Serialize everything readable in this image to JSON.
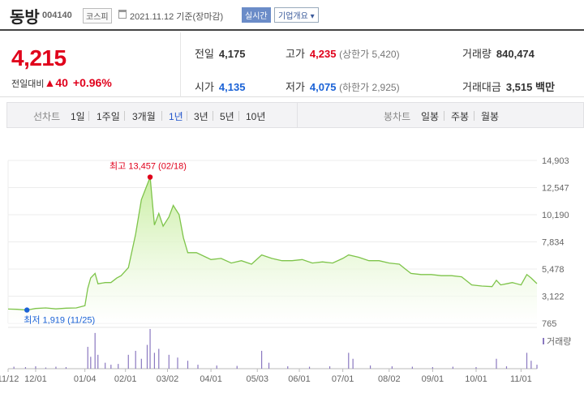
{
  "header": {
    "name": "동방",
    "code": "004140",
    "market": "코스피",
    "date": "2021.11.12 기준(장마감)",
    "realtime_label": "실시간",
    "company_info_label": "기업개요",
    "company_info_arrow": "▾"
  },
  "quote": {
    "price": "4,215",
    "change_label": "전일대비",
    "change_arrow": "▲",
    "change_amount": "40",
    "change_pct": "+0.96%",
    "prev_close_label": "전일",
    "prev_close": "4,175",
    "high_label": "고가",
    "high": "4,235",
    "upper_limit": "(상한가 5,420)",
    "volume_label": "거래량",
    "volume": "840,474",
    "open_label": "시가",
    "open": "4,135",
    "low_label": "저가",
    "low": "4,075",
    "lower_limit": "(하한가 2,925)",
    "value_label": "거래대금",
    "value": "3,515",
    "value_unit": "백만"
  },
  "tabs": {
    "line_label": "선차트",
    "periods": [
      "1일",
      "1주일",
      "3개월",
      "1년",
      "3년",
      "5년",
      "10년"
    ],
    "active_period": "1년",
    "candle_label": "봉차트",
    "candle_periods": [
      "일봉",
      "주봉",
      "월봉"
    ]
  },
  "colors": {
    "up": "#e0001b",
    "down": "#1a62d6",
    "line": "#7ec44a",
    "area_top": "#c9eea2",
    "area_bottom": "#ffffff",
    "volume": "#8a78c0"
  },
  "chart_data": {
    "type": "area",
    "y_ticks": [
      "14,903",
      "12,547",
      "10,190",
      "7,834",
      "5,478",
      "3,122",
      "765"
    ],
    "ylim": [
      765,
      14903
    ],
    "x_ticks": [
      "11/12",
      "12/01",
      "01/04",
      "02/01",
      "03/02",
      "04/01",
      "05/03",
      "06/01",
      "07/01",
      "08/02",
      "09/01",
      "10/01",
      "11/01"
    ],
    "x_range": [
      "2020-11-12",
      "2021-11-12"
    ],
    "series": [
      {
        "points": [
          [
            "2020-11-12",
            2000
          ],
          [
            "2020-11-18",
            1980
          ],
          [
            "2020-11-25",
            1919
          ],
          [
            "2020-12-01",
            2050
          ],
          [
            "2020-12-08",
            2100
          ],
          [
            "2020-12-15",
            2020
          ],
          [
            "2020-12-22",
            2080
          ],
          [
            "2020-12-29",
            2100
          ],
          [
            "2021-01-04",
            2300
          ],
          [
            "2021-01-06",
            3800
          ],
          [
            "2021-01-08",
            4700
          ],
          [
            "2021-01-11",
            5100
          ],
          [
            "2021-01-13",
            4200
          ],
          [
            "2021-01-18",
            4300
          ],
          [
            "2021-01-22",
            4300
          ],
          [
            "2021-01-26",
            4700
          ],
          [
            "2021-01-29",
            4900
          ],
          [
            "2021-02-03",
            5600
          ],
          [
            "2021-02-08",
            8500
          ],
          [
            "2021-02-12",
            11500
          ],
          [
            "2021-02-18",
            13457
          ],
          [
            "2021-02-21",
            9300
          ],
          [
            "2021-02-24",
            10300
          ],
          [
            "2021-02-27",
            9200
          ],
          [
            "2021-03-03",
            10000
          ],
          [
            "2021-03-06",
            11000
          ],
          [
            "2021-03-10",
            10200
          ],
          [
            "2021-03-13",
            8200
          ],
          [
            "2021-03-16",
            6900
          ],
          [
            "2021-03-22",
            6900
          ],
          [
            "2021-04-01",
            6300
          ],
          [
            "2021-04-08",
            6400
          ],
          [
            "2021-04-15",
            6000
          ],
          [
            "2021-04-22",
            6200
          ],
          [
            "2021-04-29",
            5900
          ],
          [
            "2021-05-06",
            6700
          ],
          [
            "2021-05-13",
            6400
          ],
          [
            "2021-05-20",
            6200
          ],
          [
            "2021-05-27",
            6200
          ],
          [
            "2021-06-03",
            6300
          ],
          [
            "2021-06-10",
            6000
          ],
          [
            "2021-06-17",
            6100
          ],
          [
            "2021-06-24",
            6000
          ],
          [
            "2021-07-01",
            6400
          ],
          [
            "2021-07-05",
            6700
          ],
          [
            "2021-07-12",
            6500
          ],
          [
            "2021-07-19",
            6200
          ],
          [
            "2021-07-26",
            6200
          ],
          [
            "2021-08-02",
            6000
          ],
          [
            "2021-08-09",
            5900
          ],
          [
            "2021-08-13",
            5500
          ],
          [
            "2021-08-17",
            5100
          ],
          [
            "2021-08-24",
            5000
          ],
          [
            "2021-08-31",
            5000
          ],
          [
            "2021-09-07",
            4900
          ],
          [
            "2021-09-14",
            4900
          ],
          [
            "2021-09-21",
            4800
          ],
          [
            "2021-09-28",
            4100
          ],
          [
            "2021-10-05",
            4000
          ],
          [
            "2021-10-12",
            3950
          ],
          [
            "2021-10-15",
            4500
          ],
          [
            "2021-10-18",
            4100
          ],
          [
            "2021-10-22",
            4200
          ],
          [
            "2021-10-26",
            4300
          ],
          [
            "2021-11-01",
            4100
          ],
          [
            "2021-11-05",
            5000
          ],
          [
            "2021-11-08",
            4700
          ],
          [
            "2021-11-12",
            4215
          ]
        ]
      }
    ],
    "annotations": [
      {
        "text": "최고 13,457 (02/18)",
        "date": "2021-02-18",
        "value": 13457,
        "color": "#e0001b"
      },
      {
        "text": "최저 1,919 (11/25)",
        "date": "2020-11-25",
        "value": 1919,
        "color": "#1a62d6"
      }
    ],
    "volume_label": "거래량",
    "volume": [
      [
        "2020-11-16",
        0.05
      ],
      [
        "2020-11-24",
        0.04
      ],
      [
        "2020-12-01",
        0.06
      ],
      [
        "2020-12-08",
        0.03
      ],
      [
        "2020-12-15",
        0.05
      ],
      [
        "2020-12-22",
        0.04
      ],
      [
        "2021-01-06",
        0.55
      ],
      [
        "2021-01-08",
        0.3
      ],
      [
        "2021-01-11",
        0.9
      ],
      [
        "2021-01-13",
        0.35
      ],
      [
        "2021-01-18",
        0.15
      ],
      [
        "2021-01-22",
        0.1
      ],
      [
        "2021-01-27",
        0.12
      ],
      [
        "2021-02-03",
        0.35
      ],
      [
        "2021-02-08",
        0.45
      ],
      [
        "2021-02-12",
        0.25
      ],
      [
        "2021-02-16",
        0.6
      ],
      [
        "2021-02-18",
        1.0
      ],
      [
        "2021-02-21",
        0.4
      ],
      [
        "2021-02-24",
        0.5
      ],
      [
        "2021-03-03",
        0.35
      ],
      [
        "2021-03-09",
        0.28
      ],
      [
        "2021-03-16",
        0.2
      ],
      [
        "2021-03-23",
        0.1
      ],
      [
        "2021-04-05",
        0.08
      ],
      [
        "2021-04-19",
        0.07
      ],
      [
        "2021-05-06",
        0.45
      ],
      [
        "2021-05-11",
        0.15
      ],
      [
        "2021-05-24",
        0.06
      ],
      [
        "2021-06-08",
        0.05
      ],
      [
        "2021-06-22",
        0.06
      ],
      [
        "2021-07-05",
        0.4
      ],
      [
        "2021-07-08",
        0.25
      ],
      [
        "2021-07-20",
        0.08
      ],
      [
        "2021-08-04",
        0.06
      ],
      [
        "2021-08-18",
        0.05
      ],
      [
        "2021-09-01",
        0.04
      ],
      [
        "2021-09-15",
        0.05
      ],
      [
        "2021-10-01",
        0.04
      ],
      [
        "2021-10-15",
        0.25
      ],
      [
        "2021-10-22",
        0.06
      ],
      [
        "2021-11-05",
        0.4
      ],
      [
        "2021-11-08",
        0.2
      ],
      [
        "2021-11-12",
        0.1
      ]
    ]
  }
}
